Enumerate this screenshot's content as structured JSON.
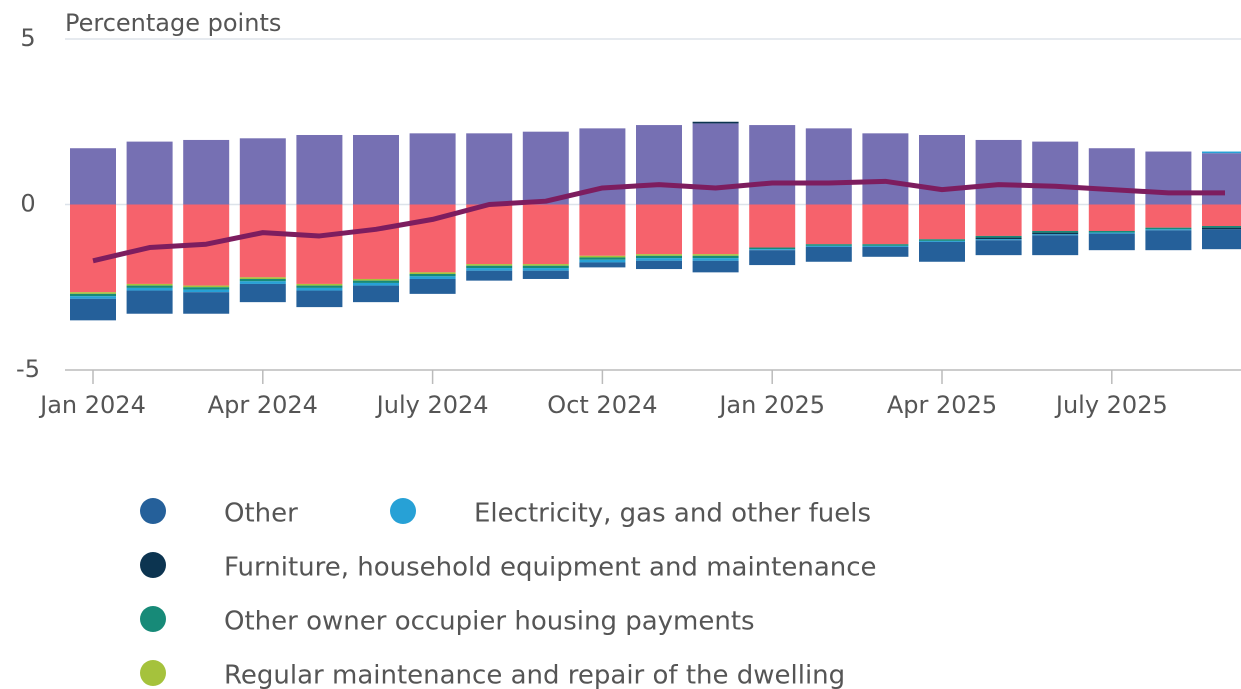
{
  "chart_data": {
    "type": "stacked_bar_line",
    "y_label": "Percentage points",
    "categories": [
      "Jan 2024",
      null,
      null,
      "Apr 2024",
      null,
      null,
      "July 2024",
      null,
      null,
      "Oct 2024",
      null,
      null,
      "Jan 2025",
      null,
      null,
      "Apr 2025",
      null,
      null,
      "July 2025",
      null,
      null
    ],
    "ylim": [
      -5,
      5
    ],
    "yticks": [
      -5,
      0,
      5
    ],
    "grid": true,
    "series": [
      {
        "name": "Other",
        "color": "#25609a",
        "values": [
          -0.65,
          -0.7,
          -0.65,
          -0.55,
          -0.5,
          -0.5,
          -0.45,
          -0.3,
          -0.25,
          -0.15,
          -0.25,
          -0.35,
          -0.45,
          -0.45,
          -0.3,
          -0.6,
          -0.45,
          -0.6,
          -0.5,
          -0.6,
          -0.6
        ]
      },
      {
        "name": "Electricity, gas and other fuels",
        "color": "#27a1d6",
        "values": [
          -0.08,
          -0.08,
          -0.08,
          -0.08,
          -0.08,
          -0.08,
          -0.08,
          -0.08,
          -0.08,
          -0.08,
          -0.08,
          -0.08,
          -0.03,
          -0.03,
          -0.03,
          -0.03,
          -0.03,
          -0.03,
          -0.03,
          -0.03,
          0.05
        ]
      },
      {
        "name": "Furniture, household equipment and maintenance",
        "color": "#0c3450",
        "values": [
          0,
          0,
          0,
          0,
          0,
          0,
          0,
          0,
          0,
          0,
          0,
          0.05,
          0,
          0,
          0,
          0,
          -0.05,
          -0.05,
          0,
          0,
          -0.05
        ]
      },
      {
        "name": "Other owner occupier housing payments",
        "color": "#178a78",
        "values": [
          -0.07,
          -0.07,
          -0.07,
          -0.07,
          -0.07,
          -0.07,
          -0.07,
          -0.07,
          -0.07,
          -0.07,
          -0.07,
          -0.07,
          -0.05,
          -0.05,
          -0.05,
          -0.05,
          -0.05,
          -0.05,
          -0.05,
          -0.05,
          -0.05
        ]
      },
      {
        "name": "Regular maintenance and repair of the dwelling",
        "color": "#a5c23c",
        "values": [
          -0.05,
          -0.05,
          -0.05,
          -0.05,
          -0.05,
          -0.05,
          -0.05,
          -0.05,
          -0.05,
          -0.05,
          -0.05,
          -0.05,
          0,
          0,
          0,
          0,
          0,
          0,
          0,
          0,
          0
        ]
      },
      {
        "color": "#7670b3",
        "values": [
          1.7,
          1.9,
          1.95,
          2.0,
          2.1,
          2.1,
          2.15,
          2.15,
          2.2,
          2.3,
          2.4,
          2.45,
          2.4,
          2.3,
          2.15,
          2.1,
          1.95,
          1.9,
          1.7,
          1.6,
          1.55
        ]
      },
      {
        "color": "#f6626c",
        "values": [
          -2.65,
          -2.4,
          -2.45,
          -2.2,
          -2.4,
          -2.25,
          -2.05,
          -1.8,
          -1.8,
          -1.55,
          -1.5,
          -1.5,
          -1.3,
          -1.2,
          -1.2,
          -1.05,
          -0.95,
          -0.8,
          -0.8,
          -0.7,
          -0.65
        ]
      }
    ],
    "line": {
      "color": "#7d1d5f",
      "values": [
        -1.7,
        -1.3,
        -1.2,
        -0.85,
        -0.95,
        -0.75,
        -0.45,
        0,
        0.1,
        0.5,
        0.6,
        0.5,
        0.65,
        0.65,
        0.7,
        0.45,
        0.6,
        0.55,
        0.45,
        0.35,
        0.35
      ]
    }
  }
}
